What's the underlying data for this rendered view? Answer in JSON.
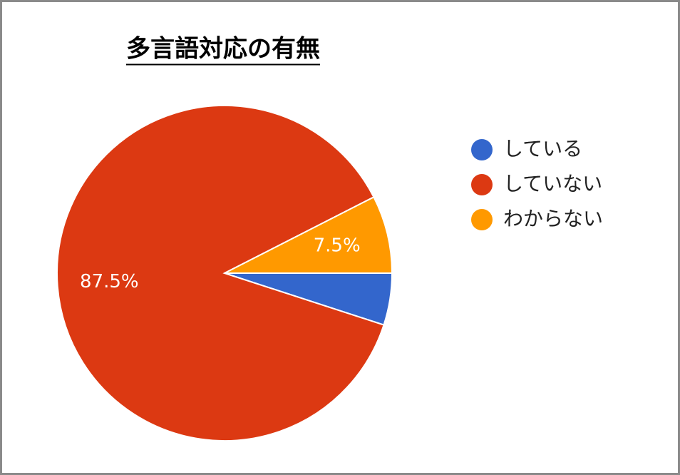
{
  "chart_data": {
    "type": "pie",
    "title": "多言語対応の有無",
    "categories": [
      "している",
      "していない",
      "わからない"
    ],
    "values": [
      5,
      87.5,
      7.5
    ],
    "value_labels": [
      null,
      "87.5%",
      "7.5%"
    ],
    "colors": [
      "#3366cc",
      "#dc3912",
      "#ff9900"
    ],
    "legend": "right"
  }
}
